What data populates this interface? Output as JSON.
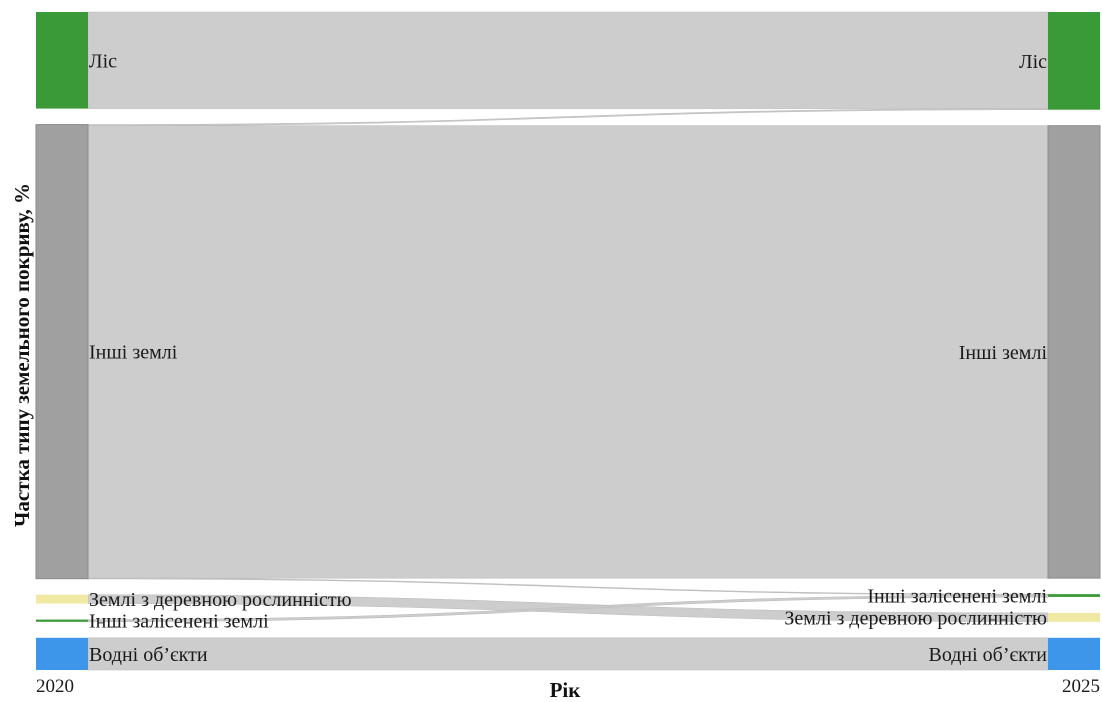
{
  "chart_data": {
    "type": "sankey",
    "title": "",
    "xlabel": "Рік",
    "ylabel": "Частка типу земельного покриву, %",
    "years": [
      "2020",
      "2025"
    ],
    "nodes_left": [
      {
        "id": "forest",
        "label": "Ліс",
        "value": 17.4,
        "color": "#3a9a38"
      },
      {
        "id": "other",
        "label": "Інші землі",
        "value": 81.8,
        "color": "#a0a0a0"
      },
      {
        "id": "woody",
        "label": "Землі з деревною рослинністю",
        "value": 1.6,
        "color": "#efe9a4"
      },
      {
        "id": "otherwooded",
        "label": "Інші залісенені землі",
        "value": 0.4,
        "color": "#3a9a38"
      },
      {
        "id": "water",
        "label": "Водні об’єкти",
        "value": 5.8,
        "color": "#3d96ea"
      }
    ],
    "nodes_right": [
      {
        "id": "forest",
        "label": "Ліс",
        "value": 17.6,
        "color": "#3a9a38"
      },
      {
        "id": "other",
        "label": "Інші землі",
        "value": 81.5,
        "color": "#a0a0a0"
      },
      {
        "id": "otherwooded",
        "label": "Інші залісенені землі",
        "value": 0.5,
        "color": "#3a9a38"
      },
      {
        "id": "woody",
        "label": "Землі з деревною рослинністю",
        "value": 1.6,
        "color": "#efe9a4"
      },
      {
        "id": "water",
        "label": "Водні об’єкти",
        "value": 5.8,
        "color": "#3d96ea"
      }
    ],
    "flows": [
      {
        "source": "forest",
        "target": "forest",
        "value": 17.4
      },
      {
        "source": "other",
        "target": "forest",
        "value": 0.2
      },
      {
        "source": "other",
        "target": "other",
        "value": 81.5
      },
      {
        "source": "other",
        "target": "otherwooded",
        "value": 0.1
      },
      {
        "source": "woody",
        "target": "woody",
        "value": 1.6
      },
      {
        "source": "otherwooded",
        "target": "otherwooded",
        "value": 0.4
      },
      {
        "source": "water",
        "target": "water",
        "value": 5.8
      }
    ]
  }
}
